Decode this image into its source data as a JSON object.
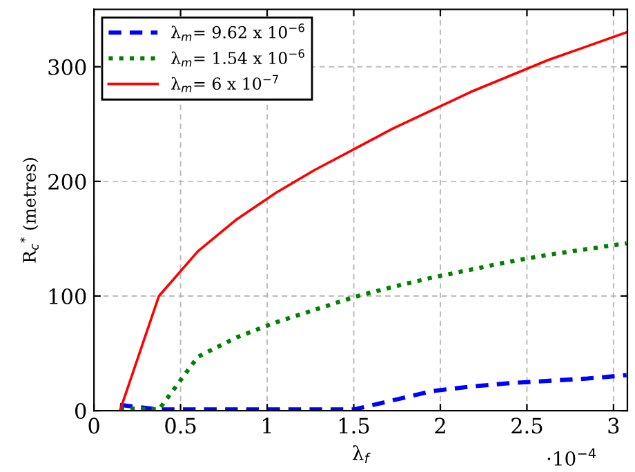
{
  "chart_data": {
    "type": "line",
    "xlabel": "λ$_{f}$",
    "ylabel": "R$_{c}$$^{*}$ (metres)",
    "annotations": [
      "·10$^{−4}$"
    ],
    "x": [
      0.15,
      0.375,
      0.6,
      0.825,
      1.05,
      1.275,
      1.5,
      1.725,
      1.95,
      2.175,
      2.4,
      2.625,
      2.85,
      3.075
    ],
    "series": [
      {
        "name": "λ$_{m}$= 9.62 x 10$^{−6}$",
        "color": "#0000ff",
        "line_style": "dashed",
        "values": [
          5,
          1,
          1,
          1,
          1,
          1,
          1,
          9,
          17,
          21,
          24,
          26,
          28,
          31
        ]
      },
      {
        "name": "λ$_{m}$= 1.54 x 10$^{−6}$",
        "color": "#008000",
        "line_style": "dotted",
        "values": [
          2,
          1,
          47,
          64,
          77,
          88,
          99,
          108,
          116,
          123,
          130,
          136,
          141,
          146
        ]
      },
      {
        "name": "λ$_{m}$= 6 x 10$^{−7}$",
        "color": "#ff0000",
        "line_style": "solid",
        "values": [
          0,
          100,
          139,
          167,
          190,
          210,
          228,
          246,
          262,
          278,
          292,
          306,
          318,
          330
        ]
      }
    ],
    "xlim": [
      0,
      3.08
    ],
    "ylim": [
      0,
      350
    ],
    "xticks": [
      0,
      0.5,
      1,
      1.5,
      2,
      2.5,
      3
    ],
    "yticks": [
      0,
      100,
      200,
      300
    ],
    "grid": true,
    "legend": "top left",
    "marker": "none"
  }
}
